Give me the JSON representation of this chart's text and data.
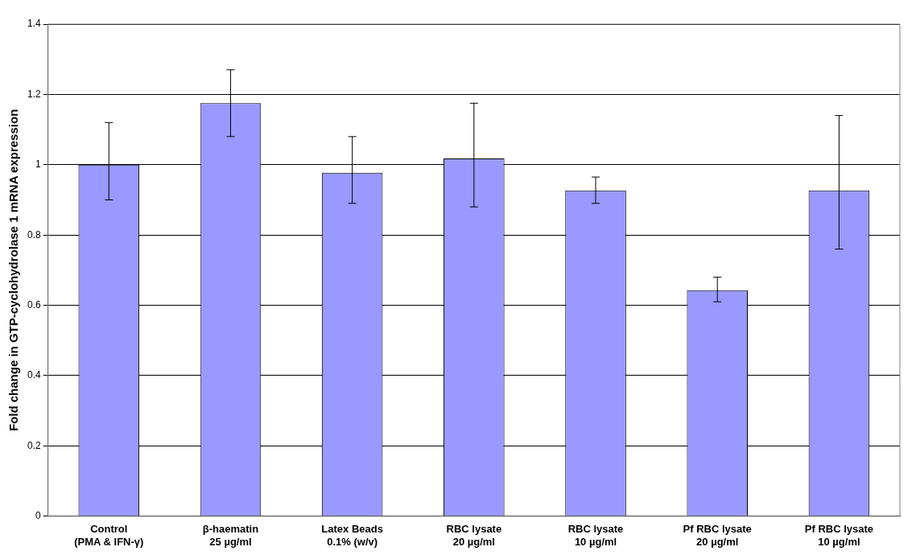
{
  "chart_data": {
    "type": "bar",
    "ylabel": "Fold change in GTP-cyclohydrolase 1 mRNA expression",
    "categories": [
      "Control\n(PMA & IFN-γ)",
      "β-haematin\n25 µg/ml",
      "Latex Beads\n0.1% (w/v)",
      "RBC lysate\n20 µg/ml",
      "RBC lysate\n10 µg/ml",
      "Pf RBC lysate\n20 µg/ml",
      "Pf RBC lysate\n10 µg/ml"
    ],
    "values": [
      1.0,
      1.175,
      0.977,
      1.018,
      0.927,
      0.643,
      0.927
    ],
    "errors": [
      [
        0.9,
        1.12
      ],
      [
        1.08,
        1.27
      ],
      [
        0.89,
        1.08
      ],
      [
        0.88,
        1.175
      ],
      [
        0.89,
        0.965
      ],
      [
        0.61,
        0.68
      ],
      [
        0.76,
        1.14
      ]
    ],
    "color": "#9999ff",
    "ylim": [
      0,
      1.4
    ],
    "yticks": [
      0,
      0.2,
      0.4,
      0.6,
      0.8,
      1,
      1.2,
      1.4
    ],
    "grid": "y"
  }
}
